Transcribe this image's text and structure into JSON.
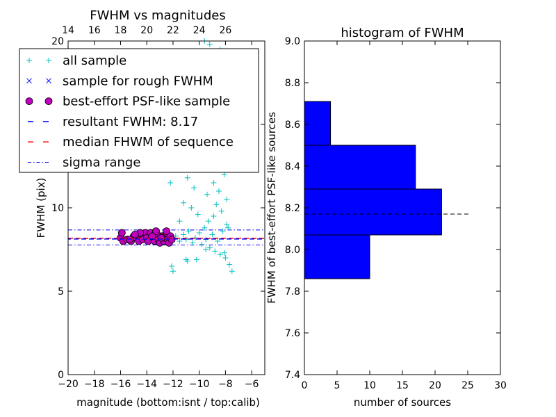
{
  "chart_data": [
    {
      "type": "scatter",
      "title": "FWHM vs magnitudes",
      "xlabel": "magnitude (bottom:isnt / top:calib)",
      "ylabel": "FWHM (pix)",
      "xlim": [
        -20,
        -5
      ],
      "ylim": [
        0,
        20
      ],
      "x_ticks": [
        "−20",
        "−18",
        "−16",
        "−14",
        "−12",
        "−10",
        "−8",
        "−6"
      ],
      "y_ticks": [
        "0",
        "5",
        "10",
        "15",
        "20"
      ],
      "top_axis": {
        "offset": 34,
        "ticks": [
          "14",
          "16",
          "18",
          "20",
          "22",
          "24",
          "26"
        ]
      },
      "lines": {
        "resultant_fwhm": 8.17,
        "median_fwhm": 8.17,
        "sigma_range": [
          7.77,
          8.67
        ]
      },
      "series": [
        {
          "name": "all sample",
          "marker": "+",
          "color": "#00bfbf",
          "points": [
            [
              -11.8,
              8.3
            ],
            [
              -11.5,
              8.0
            ],
            [
              -11.2,
              8.4
            ],
            [
              -11.0,
              8.1
            ],
            [
              -10.8,
              8.6
            ],
            [
              -10.5,
              7.9
            ],
            [
              -10.3,
              8.2
            ],
            [
              -10.0,
              8.5
            ],
            [
              -9.8,
              7.8
            ],
            [
              -9.6,
              8.8
            ],
            [
              -9.5,
              8.1
            ],
            [
              -9.3,
              9.2
            ],
            [
              -9.2,
              7.6
            ],
            [
              -9.0,
              8.4
            ],
            [
              -8.9,
              9.5
            ],
            [
              -8.8,
              7.4
            ],
            [
              -8.7,
              10.2
            ],
            [
              -8.6,
              8.0
            ],
            [
              -8.5,
              11.0
            ],
            [
              -8.4,
              7.2
            ],
            [
              -8.3,
              9.8
            ],
            [
              -8.2,
              8.6
            ],
            [
              -8.1,
              12.0
            ],
            [
              -8.0,
              7.0
            ],
            [
              -7.9,
              10.5
            ],
            [
              -7.8,
              8.8
            ],
            [
              -7.7,
              6.6
            ],
            [
              -8.5,
              13.0
            ],
            [
              -8.8,
              14.0
            ],
            [
              -9.0,
              12.5
            ],
            [
              -8.3,
              15.0
            ],
            [
              -8.6,
              16.5
            ],
            [
              -8.9,
              11.5
            ],
            [
              -9.4,
              10.8
            ],
            [
              -9.7,
              12.8
            ],
            [
              -10.1,
              9.6
            ],
            [
              -10.4,
              11.2
            ],
            [
              -9.9,
              13.5
            ],
            [
              -9.3,
              14.8
            ],
            [
              -8.7,
              17.2
            ],
            [
              -9.1,
              18.0
            ],
            [
              -8.4,
              19.5
            ],
            [
              -9.6,
              20.0
            ],
            [
              -9.2,
              19.8
            ],
            [
              -10.6,
              10.0
            ],
            [
              -11.2,
              10.3
            ],
            [
              -12.1,
              6.5
            ],
            [
              -12.0,
              6.2
            ],
            [
              -11.0,
              6.9
            ],
            [
              -10.9,
              6.8
            ],
            [
              -11.5,
              9.2
            ],
            [
              -10.2,
              6.9
            ],
            [
              -9.5,
              7.5
            ],
            [
              -8.1,
              7.3
            ],
            [
              -7.5,
              6.2
            ],
            [
              -12.2,
              11.5
            ],
            [
              -11.4,
              12.7
            ],
            [
              -10.7,
              13.4
            ],
            [
              -10.9,
              11.8
            ],
            [
              -11.8,
              13.0
            ],
            [
              -12.5,
              8.2
            ],
            [
              -13.2,
              8.1
            ],
            [
              -14.0,
              8.3
            ],
            [
              -15.0,
              8.2
            ],
            [
              -10.1,
              14.5
            ],
            [
              -9.4,
              16.2
            ],
            [
              -8.8,
              16.0
            ],
            [
              -8.0,
              12.8
            ],
            [
              -8.2,
              14.0
            ],
            [
              -7.9,
              9.0
            ]
          ]
        },
        {
          "name": "sample for rough FWHM",
          "marker": "x",
          "color": "#0000ff",
          "points": []
        },
        {
          "name": "best-effort PSF-like sample",
          "marker": "o",
          "color": "#bf00bf",
          "points": [
            [
              -16.0,
              8.2
            ],
            [
              -15.9,
              8.5
            ],
            [
              -15.8,
              8.0
            ],
            [
              -15.5,
              8.1
            ],
            [
              -15.2,
              8.0
            ],
            [
              -15.0,
              8.3
            ],
            [
              -14.8,
              8.2
            ],
            [
              -14.6,
              8.0
            ],
            [
              -14.4,
              8.4
            ],
            [
              -14.3,
              8.1
            ],
            [
              -14.1,
              8.5
            ],
            [
              -14.0,
              8.2
            ],
            [
              -13.9,
              8.0
            ],
            [
              -13.7,
              8.5
            ],
            [
              -13.5,
              8.2
            ],
            [
              -13.4,
              8.0
            ],
            [
              -13.2,
              8.4
            ],
            [
              -13.1,
              8.1
            ],
            [
              -13.0,
              7.9
            ],
            [
              -12.8,
              8.3
            ],
            [
              -12.7,
              8.0
            ],
            [
              -12.6,
              8.2
            ],
            [
              -12.5,
              8.5
            ],
            [
              -12.4,
              8.1
            ],
            [
              -12.3,
              7.9
            ],
            [
              -12.2,
              8.3
            ],
            [
              -12.5,
              8.6
            ],
            [
              -13.3,
              8.6
            ],
            [
              -14.5,
              8.5
            ],
            [
              -15.3,
              8.1
            ],
            [
              -12.9,
              8.2
            ],
            [
              -13.6,
              8.3
            ],
            [
              -12.1,
              8.1
            ],
            [
              -14.9,
              8.4
            ]
          ]
        }
      ],
      "legend": {
        "position": "top",
        "entries": [
          {
            "label": "all sample",
            "marker": "+",
            "color": "#00bfbf"
          },
          {
            "label": "sample for rough FWHM",
            "marker": "x",
            "color": "#0000ff"
          },
          {
            "label": "best-effort PSF-like sample",
            "marker": "o",
            "color": "#bf00bf"
          },
          {
            "label": "resultant FWHM: 8.17",
            "marker": "dash",
            "color": "#0000ff"
          },
          {
            "label": "median FHWM of sequence",
            "marker": "dash",
            "color": "#ff0000"
          },
          {
            "label": "sigma range",
            "marker": "dashdot",
            "color": "#0000ff"
          }
        ]
      }
    },
    {
      "type": "bar",
      "orientation": "horizontal",
      "title": "histogram of FWHM",
      "xlabel": "number of sources",
      "ylabel": "FWHM of best-effort PSF-like sources",
      "xlim": [
        0,
        30
      ],
      "ylim": [
        7.4,
        9.0
      ],
      "x_ticks": [
        "0",
        "5",
        "10",
        "15",
        "20",
        "25",
        "30"
      ],
      "y_ticks": [
        "7.4",
        "7.6",
        "7.8",
        "8.0",
        "8.2",
        "8.4",
        "8.6",
        "8.8",
        "9.0"
      ],
      "bins": [
        {
          "from": 7.86,
          "to": 8.07,
          "count": 10
        },
        {
          "from": 8.07,
          "to": 8.29,
          "count": 21
        },
        {
          "from": 8.29,
          "to": 8.5,
          "count": 17
        },
        {
          "from": 8.5,
          "to": 8.71,
          "count": 4
        }
      ],
      "bar_color": "#0000ff",
      "reference_line": {
        "y": 8.17,
        "x_to": 25.3,
        "style": "dashed",
        "color": "#000000"
      }
    }
  ]
}
